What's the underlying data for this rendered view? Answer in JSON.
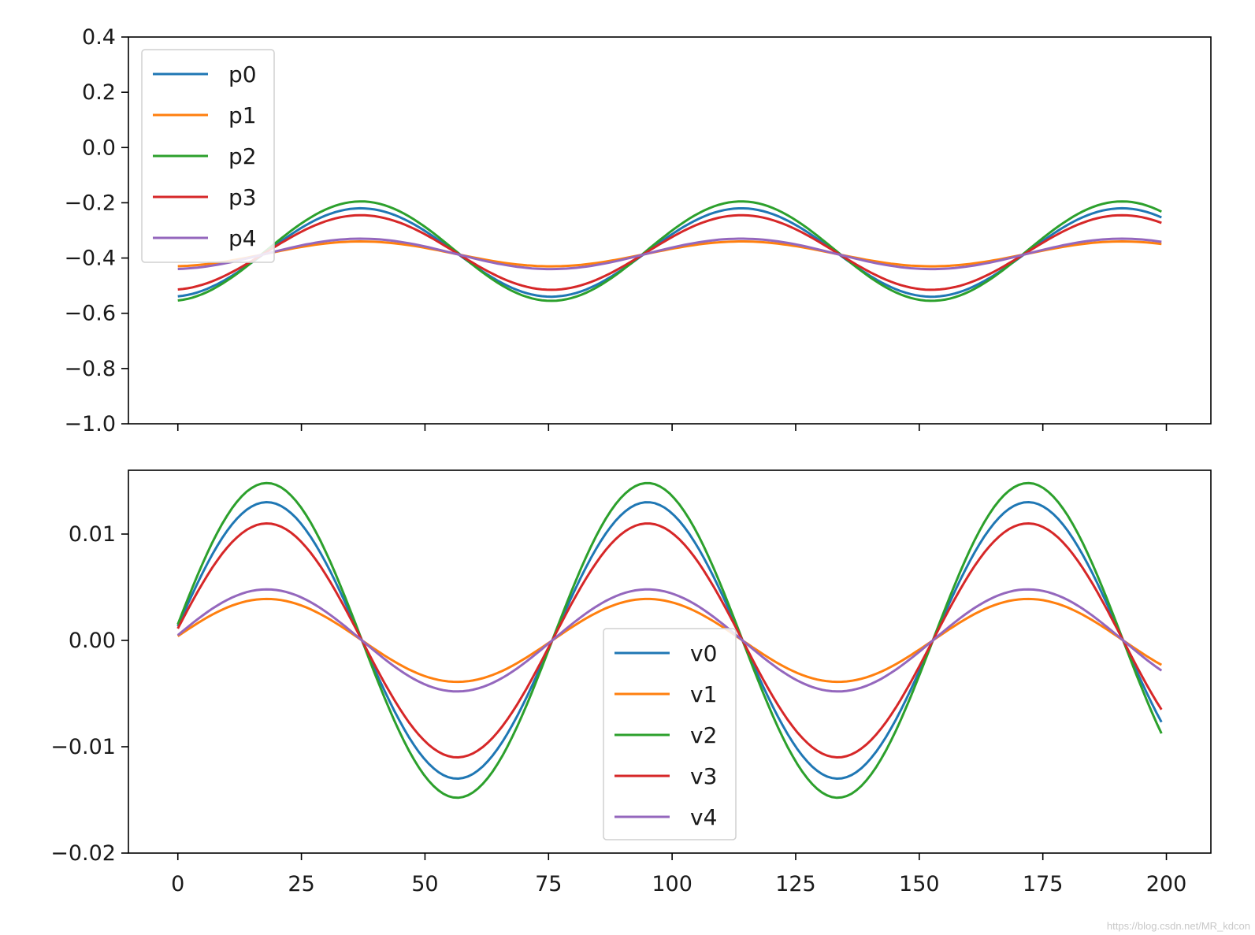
{
  "watermark": "https://blog.csdn.net/MR_kdcon",
  "chart_data": [
    {
      "type": "line",
      "xlim": [
        -10,
        209
      ],
      "ylim": [
        -1.0,
        0.4
      ],
      "yticks": [
        0.4,
        0.2,
        0.0,
        -0.2,
        -0.4,
        -0.6,
        -0.8,
        -1.0
      ],
      "ytick_labels": [
        "0.4",
        "0.2",
        "0.0",
        "−0.2",
        "−0.4",
        "−0.6",
        "−0.8",
        "−1.0"
      ],
      "xticks": [
        0,
        25,
        50,
        75,
        100,
        125,
        150,
        175,
        200
      ],
      "xtick_labels_shown": false,
      "legend_location": "upper left",
      "x_range": [
        0,
        199
      ],
      "period": 77,
      "series": [
        {
          "name": "p0",
          "color": "#1f77b4",
          "mean": -0.38,
          "amplitude": 0.16,
          "phase_peak_x": 37,
          "start_value": -0.54,
          "end_value": -0.25
        },
        {
          "name": "p1",
          "color": "#ff7f0e",
          "mean": -0.385,
          "amplitude": 0.045,
          "phase_peak_x": 37,
          "start_value": -0.43,
          "end_value": -0.355
        },
        {
          "name": "p2",
          "color": "#2ca02c",
          "mean": -0.375,
          "amplitude": 0.18,
          "phase_peak_x": 37,
          "start_value": -0.56,
          "end_value": -0.215
        },
        {
          "name": "p3",
          "color": "#d62728",
          "mean": -0.38,
          "amplitude": 0.135,
          "phase_peak_x": 37,
          "start_value": -0.52,
          "end_value": -0.275
        },
        {
          "name": "p4",
          "color": "#9467bd",
          "mean": -0.385,
          "amplitude": 0.055,
          "phase_peak_x": 37,
          "start_value": -0.44,
          "end_value": -0.345
        }
      ]
    },
    {
      "type": "line",
      "xlim": [
        -10,
        209
      ],
      "ylim": [
        -0.02,
        0.016
      ],
      "yticks": [
        0.01,
        0.0,
        -0.01,
        -0.02
      ],
      "ytick_labels": [
        "0.01",
        "0.00",
        "−0.01",
        "−0.02"
      ],
      "xticks": [
        0,
        25,
        50,
        75,
        100,
        125,
        150,
        175,
        200
      ],
      "xtick_labels": [
        "0",
        "25",
        "50",
        "75",
        "100",
        "125",
        "150",
        "175",
        "200"
      ],
      "legend_location": "lower center",
      "x_range": [
        0,
        199
      ],
      "period": 77,
      "series": [
        {
          "name": "v0",
          "color": "#1f77b4",
          "amplitude": 0.013,
          "phase_peak_x": 18,
          "start_value": 0.001,
          "end_value": -0.0063
        },
        {
          "name": "v1",
          "color": "#ff7f0e",
          "amplitude": 0.0039,
          "phase_peak_x": 18,
          "start_value": 0.0005,
          "end_value": -0.0028
        },
        {
          "name": "v2",
          "color": "#2ca02c",
          "amplitude": 0.0148,
          "phase_peak_x": 18,
          "start_value": 0.0012,
          "end_value": -0.0062
        },
        {
          "name": "v3",
          "color": "#d62728",
          "amplitude": 0.011,
          "phase_peak_x": 18,
          "start_value": 0.0008,
          "end_value": -0.0064
        },
        {
          "name": "v4",
          "color": "#9467bd",
          "amplitude": 0.0048,
          "phase_peak_x": 18,
          "start_value": 0.0004,
          "end_value": -0.0033
        }
      ]
    }
  ]
}
